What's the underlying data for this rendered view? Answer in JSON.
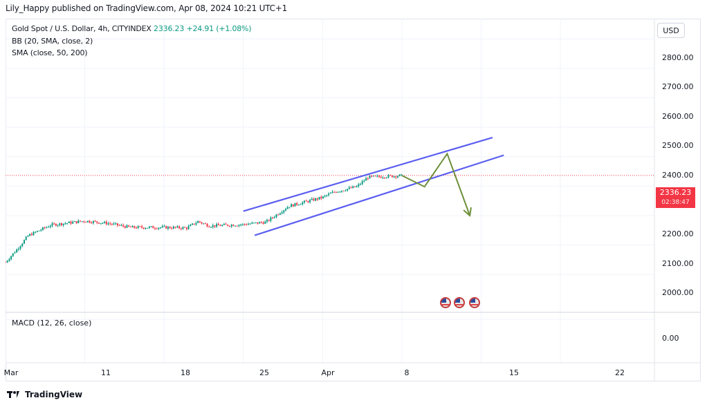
{
  "publisher_line": "Lily_Happy published on TradingView.com, Apr 08, 2024 10:21 UTC+1",
  "legend": {
    "symbol": "Gold Spot / U.S. Dollar, 4h, CITYINDEX",
    "price": "2336.23",
    "change": "+24.91 (+1.08%)",
    "bb": "BB (20, SMA, close, 2)",
    "sma": "SMA (close, 50, 200)"
  },
  "currency": "USD",
  "price_tag": {
    "value": "2336.23",
    "countdown": "02:38:47"
  },
  "y_ticks": [
    "2800.00",
    "2700.00",
    "2600.00",
    "2500.00",
    "2400.00",
    "2300.00",
    "2200.00",
    "2100.00",
    "2000.00"
  ],
  "x_ticks": [
    "Mar",
    "11",
    "18",
    "25",
    "Apr",
    "8",
    "15",
    "22"
  ],
  "macd": {
    "label": "MACD (12, 26, close)",
    "zero": "0.00"
  },
  "logo_text": "TradingView",
  "colors": {
    "up": "#089981",
    "down": "#f23645",
    "channel": "#5b5ef0",
    "arrow": "#6d8f3a",
    "last_price_line": "#f23645"
  },
  "chart_data": {
    "type": "candlestick",
    "symbol": "Gold Spot / U.S. Dollar",
    "interval": "4h",
    "ylim": [
      1960,
      2860
    ],
    "x_range": [
      "Mar 4",
      "Apr 24"
    ],
    "last_price": 2336.23,
    "approx_close_path": [
      {
        "x": "Mar 4",
        "y": 2042
      },
      {
        "x": "Mar 5",
        "y": 2085
      },
      {
        "x": "Mar 6",
        "y": 2132
      },
      {
        "x": "Mar 8",
        "y": 2168
      },
      {
        "x": "Mar 11",
        "y": 2182
      },
      {
        "x": "Mar 13",
        "y": 2174
      },
      {
        "x": "Mar 15",
        "y": 2160
      },
      {
        "x": "Mar 18",
        "y": 2160
      },
      {
        "x": "Mar 20",
        "y": 2158
      },
      {
        "x": "Mar 21",
        "y": 2180
      },
      {
        "x": "Mar 22",
        "y": 2165
      },
      {
        "x": "Mar 25",
        "y": 2170
      },
      {
        "x": "Mar 27",
        "y": 2178
      },
      {
        "x": "Mar 29",
        "y": 2232
      },
      {
        "x": "Apr 1",
        "y": 2262
      },
      {
        "x": "Apr 2",
        "y": 2280
      },
      {
        "x": "Apr 4",
        "y": 2298
      },
      {
        "x": "Apr 5",
        "y": 2330
      },
      {
        "x": "Apr 8",
        "y": 2336
      }
    ],
    "channel": {
      "upper": [
        {
          "x": "Mar 25",
          "y": 2215
        },
        {
          "x": "Apr 16",
          "y": 2465
        }
      ],
      "lower": [
        {
          "x": "Mar 26",
          "y": 2133
        },
        {
          "x": "Apr 17",
          "y": 2405
        }
      ]
    },
    "projection_path": [
      {
        "x": "Apr 8",
        "y": 2336
      },
      {
        "x": "Apr 10",
        "y": 2298
      },
      {
        "x": "Apr 12",
        "y": 2410
      },
      {
        "x": "Apr 14",
        "y": 2200
      }
    ]
  }
}
